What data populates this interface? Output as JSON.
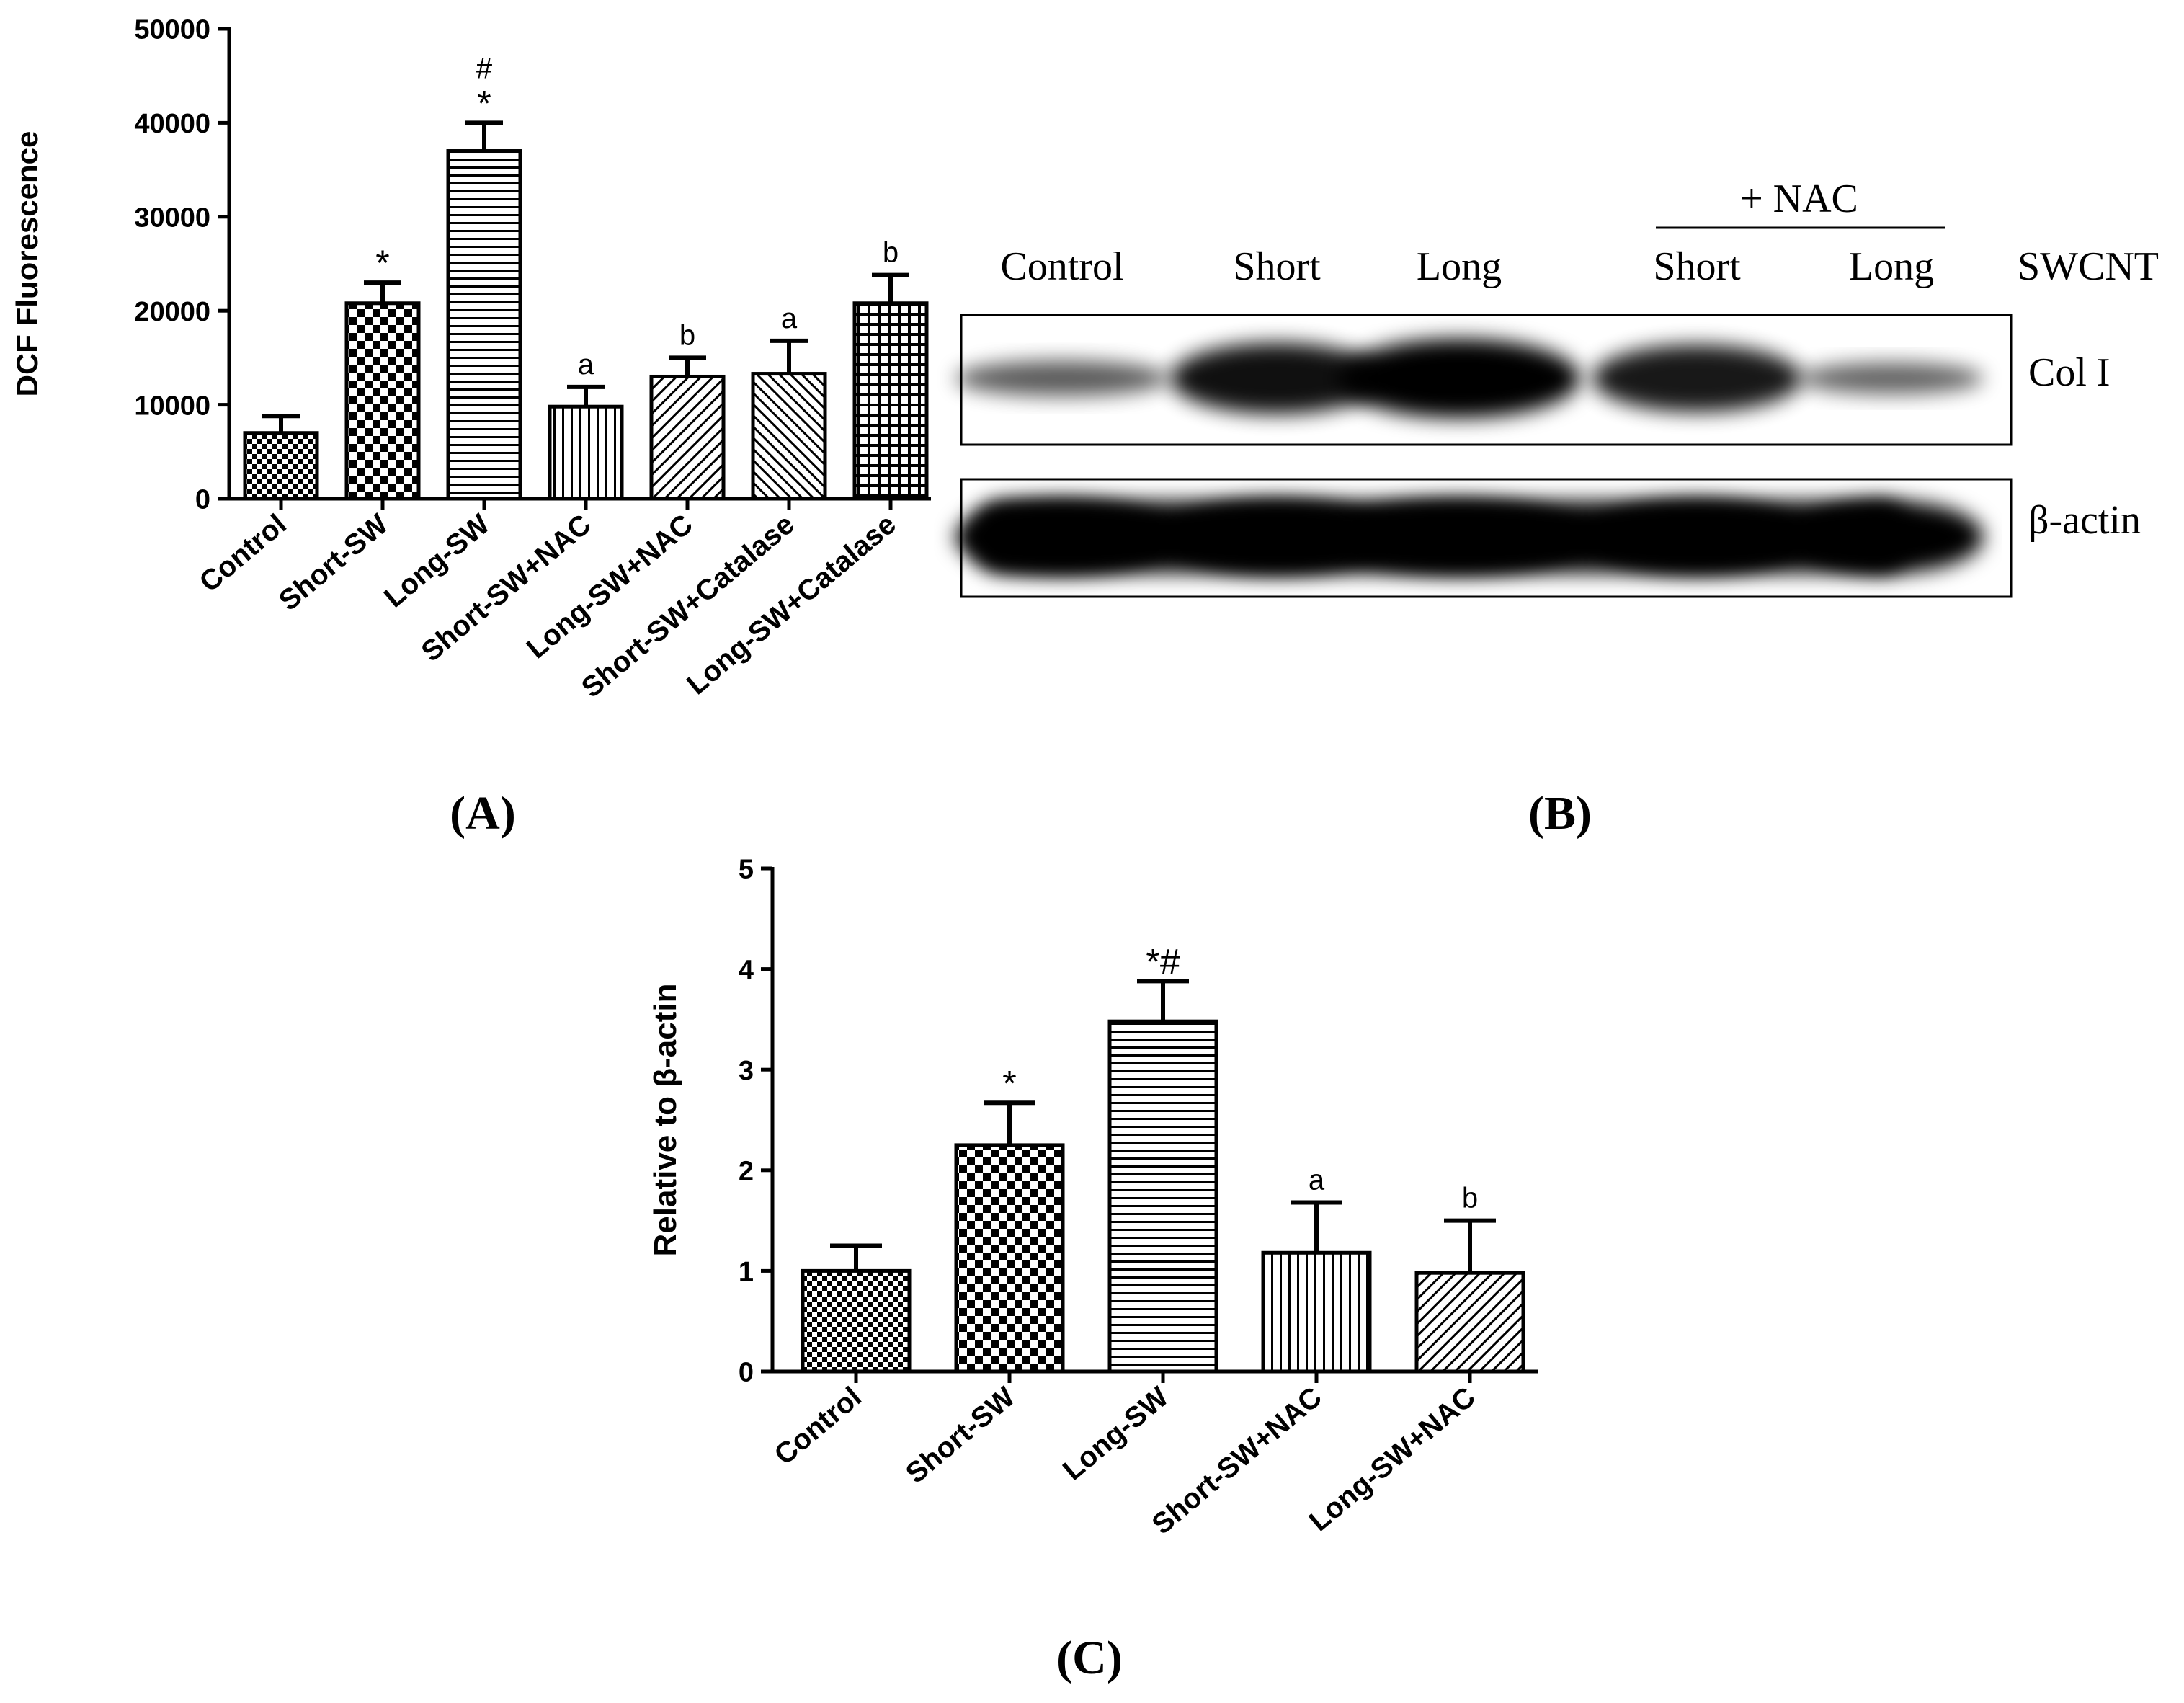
{
  "panels": {
    "A": {
      "label_open": "(",
      "label_letter": "A",
      "label_close": ")"
    },
    "B": {
      "label_open": "(",
      "label_letter": "B",
      "label_close": ")"
    },
    "C": {
      "label_open": "(",
      "label_letter": "C",
      "label_close": ")"
    }
  },
  "blot": {
    "lanes": [
      "Control",
      "Short",
      "Long",
      "Short",
      "Long"
    ],
    "treatment_label": "+ NAC",
    "group_label": "SWCNT",
    "rows": [
      {
        "label": "Col I",
        "intensity": [
          0.45,
          0.9,
          1.0,
          0.85,
          0.4
        ]
      },
      {
        "label": "β-actin",
        "intensity": [
          1.0,
          1.0,
          1.0,
          1.0,
          1.0
        ]
      }
    ]
  },
  "colors": {
    "ink": "#000000",
    "paper": "#ffffff"
  },
  "chart_data": [
    {
      "type": "bar",
      "panel": "A",
      "title": "",
      "xlabel": "",
      "ylabel": "DCF Fluorescence",
      "ylim": [
        0,
        50000
      ],
      "yticks": [
        0,
        10000,
        20000,
        30000,
        40000,
        50000
      ],
      "grid": false,
      "categories": [
        "Control",
        "Short-SW",
        "Long-SW",
        "Short-SW+NAC",
        "Long-SW+NAC",
        "Short-SW+Catalase",
        "Long-SW+Catalase"
      ],
      "values": [
        7000,
        20800,
        37000,
        9800,
        13000,
        13300,
        20800
      ],
      "errors": [
        1800,
        2200,
        3000,
        2100,
        2000,
        3500,
        3000
      ],
      "annotations": [
        "",
        "*",
        "*",
        "a",
        "b",
        "a",
        "b"
      ],
      "annotations2": [
        "",
        "",
        "#",
        "",
        "",
        "",
        ""
      ],
      "patterns": [
        "checker-fine",
        "checker",
        "hlines",
        "vlines",
        "diag",
        "diag-back",
        "grid"
      ]
    },
    {
      "type": "bar",
      "panel": "C",
      "title": "",
      "xlabel": "",
      "ylabel": "Relative to β-actin",
      "ylim": [
        0,
        5
      ],
      "yticks": [
        0,
        1,
        2,
        3,
        4,
        5
      ],
      "grid": false,
      "categories": [
        "Control",
        "Short-SW",
        "Long-SW",
        "Short-SW+NAC",
        "Long-SW+NAC"
      ],
      "values": [
        1.0,
        2.25,
        3.48,
        1.18,
        0.98
      ],
      "errors": [
        0.25,
        0.42,
        0.4,
        0.5,
        0.52
      ],
      "annotations": [
        "",
        "*",
        "*#",
        "a",
        "b"
      ],
      "annotations2": [
        "",
        "",
        "",
        "",
        ""
      ],
      "patterns": [
        "checker-fine",
        "checker",
        "hlines",
        "vlines",
        "diag"
      ]
    }
  ]
}
